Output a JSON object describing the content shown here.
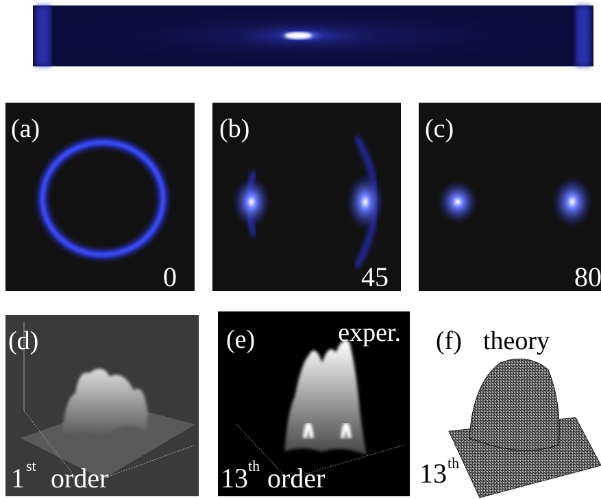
{
  "panels": [
    {
      "label": "(a)",
      "angle": 0
    },
    {
      "label": "(b)",
      "angle": 45
    },
    {
      "label": "(c)",
      "angle": 80
    }
  ],
  "surfaces": [
    {
      "label": "(d)",
      "order_number": "1",
      "order_suffix": "st",
      "order_word": "order"
    },
    {
      "label": "(e)",
      "note": "exper.",
      "order_number": "13",
      "order_suffix": "th",
      "order_word": "order"
    },
    {
      "label": "(f)",
      "note": "theory",
      "order_number": "13",
      "order_suffix": "th"
    }
  ]
}
